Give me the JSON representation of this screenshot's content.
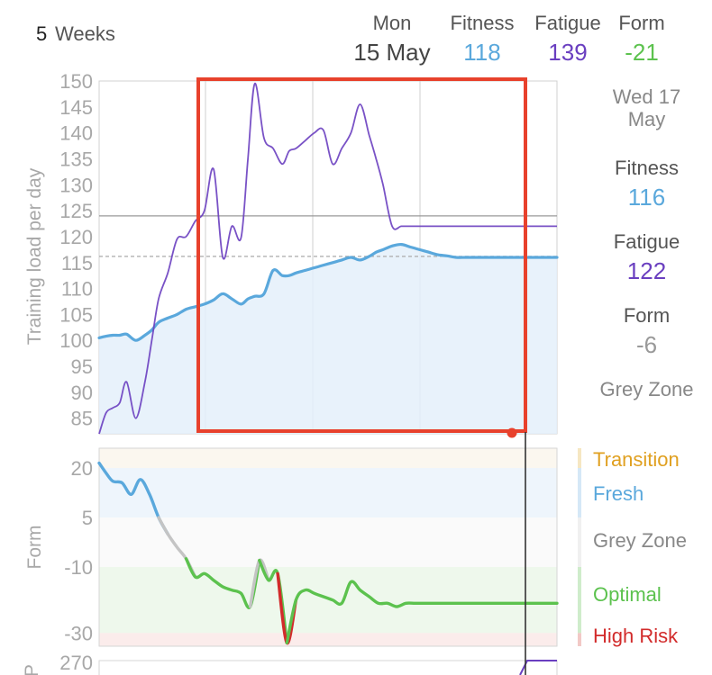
{
  "period": {
    "number": "5",
    "unit": "Weeks"
  },
  "header": {
    "day": "Mon",
    "date": "15 May",
    "fitness_label": "Fitness",
    "fitness_value": "118",
    "fatigue_label": "Fatigue",
    "fatigue_value": "139",
    "form_label": "Form",
    "form_value": "-21"
  },
  "sidebar": {
    "date_line1": "Wed 17",
    "date_line2": "May",
    "fitness_label": "Fitness",
    "fitness_value": "116",
    "fatigue_label": "Fatigue",
    "fatigue_value": "122",
    "form_label": "Form",
    "form_value": "-6",
    "zone": "Grey Zone"
  },
  "colors": {
    "fitness": "#5aa8dc",
    "fatigue": "#6a3fc0",
    "form_positive": "#5aa8dc",
    "form_grey": "#c4c4c4",
    "form_optimal": "#5cc24e",
    "form_high_risk": "#d22b2b",
    "selection_box": "#e8412c",
    "zone_transition": "#e0a020",
    "zone_fresh": "#5aa8dc",
    "zone_grey": "#888888",
    "zone_optimal": "#5cc24e",
    "zone_high_risk": "#d22b2b"
  },
  "chart_data": [
    {
      "type": "line",
      "ylabel": "Training load per day",
      "ylim": [
        82,
        150
      ],
      "yticks": [
        85,
        90,
        95,
        100,
        105,
        110,
        115,
        120,
        125,
        130,
        135,
        140,
        145,
        150
      ],
      "x": [
        0,
        1.5,
        3,
        4.5,
        6,
        8,
        10,
        11.5,
        13,
        15,
        17,
        19,
        21,
        23,
        25,
        27,
        29,
        31,
        32.5,
        34,
        36,
        38,
        40,
        41.5,
        43,
        45,
        47,
        49,
        51,
        53,
        55,
        57,
        59,
        60.5,
        62,
        64,
        66,
        68,
        70,
        72,
        74,
        76,
        78,
        80,
        82,
        84,
        86,
        88,
        90,
        92,
        94,
        96,
        98,
        100
      ],
      "series": [
        {
          "name": "Fitness",
          "values": [
            100.5,
            100.8,
            101,
            101,
            101.2,
            100,
            101,
            102,
            103.5,
            104.3,
            105,
            106,
            106.5,
            107,
            107.8,
            109,
            108,
            107,
            108,
            108.5,
            109,
            113.5,
            112.5,
            112.5,
            113,
            113.5,
            114,
            114.5,
            115,
            115.5,
            116,
            115.5,
            116.2,
            117,
            117.5,
            118.2,
            118.5,
            118,
            117.5,
            117,
            116.5,
            116.3,
            116,
            116,
            116,
            116,
            116,
            116,
            116,
            116,
            116,
            116,
            116,
            116
          ]
        },
        {
          "name": "Fatigue",
          "values": [
            82,
            86,
            87,
            88,
            92,
            85,
            92,
            100,
            108,
            113,
            119.5,
            120,
            123,
            125,
            133,
            116,
            122,
            119.8,
            135,
            149.5,
            139,
            137,
            134,
            136.5,
            137,
            138.5,
            140,
            140.5,
            134,
            137,
            140,
            145.5,
            139.5,
            135,
            130,
            122,
            122,
            122,
            122,
            122,
            122,
            122,
            122,
            122,
            122,
            122,
            122,
            122,
            122,
            122,
            122,
            122,
            122,
            122
          ]
        }
      ],
      "reference_lines": [
        124,
        116.2
      ]
    },
    {
      "type": "line",
      "ylabel": "Form",
      "ylim": [
        -34,
        26
      ],
      "yticks": [
        20,
        5,
        -10,
        -30
      ],
      "zones": [
        {
          "name": "Transition",
          "from": 20,
          "to": 26
        },
        {
          "name": "Fresh",
          "from": 5,
          "to": 20
        },
        {
          "name": "Grey Zone",
          "from": -10,
          "to": 5
        },
        {
          "name": "Optimal",
          "from": -30,
          "to": -10
        },
        {
          "name": "High Risk",
          "from": -34,
          "to": -30
        }
      ],
      "x": [
        0,
        1.5,
        3,
        5,
        7,
        9,
        11,
        13,
        15,
        17,
        19,
        21,
        23,
        25,
        27,
        29,
        31,
        33,
        35,
        37,
        39,
        41,
        43,
        45,
        47,
        49,
        51,
        53,
        55,
        57,
        59,
        61,
        63,
        65,
        67,
        69,
        71,
        73,
        75,
        77,
        79,
        81,
        83,
        85,
        87,
        89,
        91,
        93,
        95,
        97,
        100
      ],
      "values": [
        21.5,
        18.5,
        16,
        15.5,
        12,
        16.5,
        12,
        5,
        0,
        -4,
        -7.5,
        -13,
        -12,
        -14,
        -16,
        -17,
        -18,
        -22,
        -8,
        -14,
        -12,
        -33,
        -20,
        -17,
        -18,
        -19,
        -20,
        -21,
        -14.5,
        -17,
        -19,
        -21,
        -21,
        -22,
        -21,
        -21,
        -21,
        -21,
        -21,
        -21,
        -21,
        -21,
        -21,
        -21,
        -21,
        -21,
        -21,
        -21,
        -21,
        -21,
        -21
      ],
      "legend": [
        "Transition",
        "Fresh",
        "Grey Zone",
        "Optimal",
        "High Risk"
      ]
    },
    {
      "type": "line",
      "ylabel": "P",
      "yticks": [
        270
      ],
      "partially_visible": true
    }
  ]
}
